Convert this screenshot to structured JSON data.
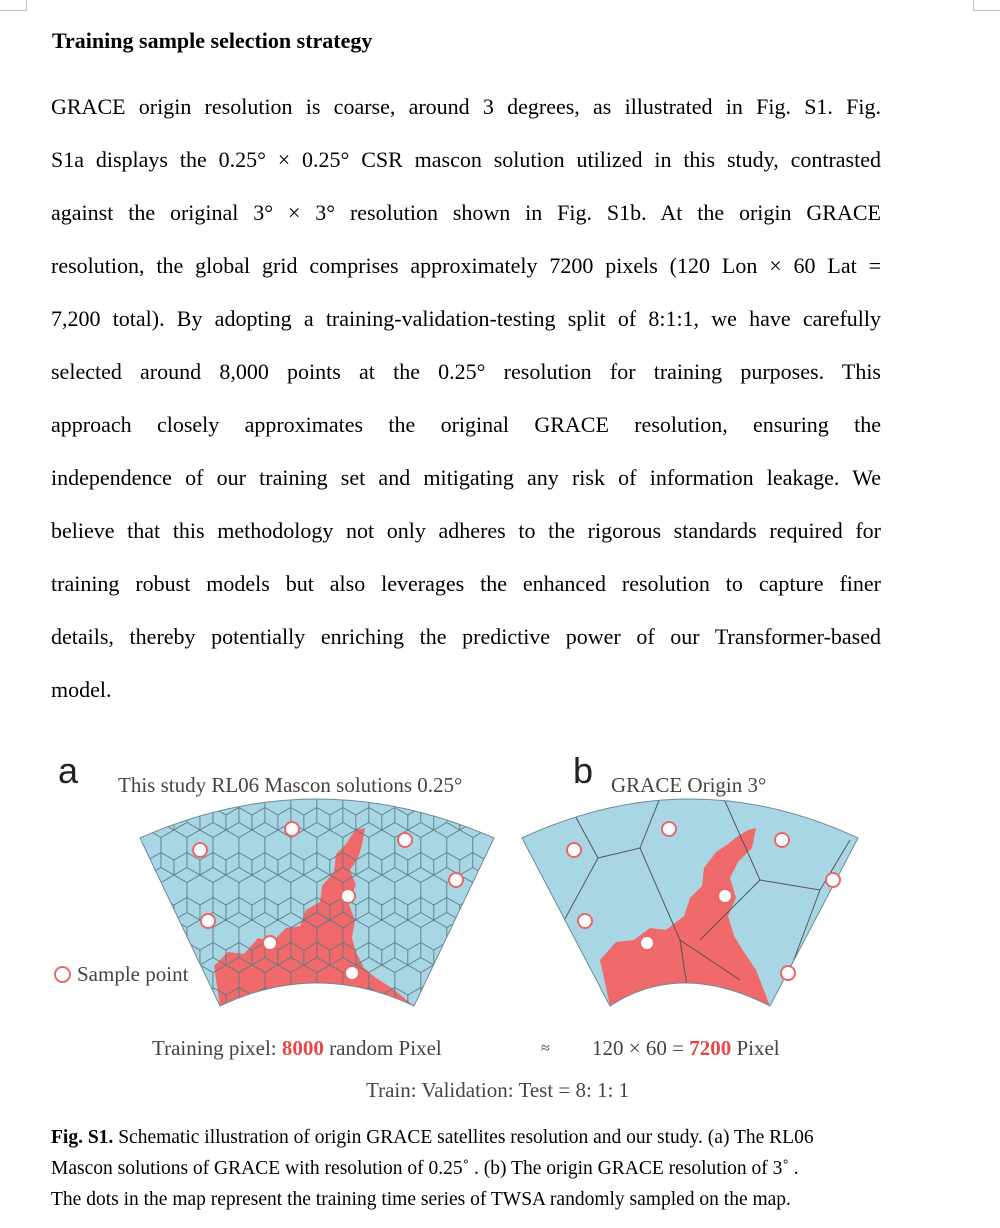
{
  "section": {
    "heading": "Training sample selection strategy"
  },
  "body_lines": [
    "GRACE origin resolution is coarse, around 3 degrees, as illustrated in Fig. S1. Fig.",
    "S1a displays the 0.25° × 0.25° CSR mascon solution utilized in this study, contrasted",
    "against the original 3° × 3° resolution shown in Fig. S1b. At the origin GRACE",
    "resolution, the global grid comprises approximately 7200 pixels (120 Lon × 60 Lat =",
    "7,200 total). By adopting a training-validation-testing split of 8:1:1, we have carefully",
    "selected around 8,000 points at the 0.25° resolution for training purposes. This",
    "approach closely approximates the original GRACE resolution, ensuring the",
    "independence of our training set and mitigating any risk of information leakage. We",
    "believe that this methodology not only adheres to the rigorous standards required for",
    "training robust models but also leverages the enhanced resolution to capture finer",
    "details, thereby potentially enriching the predictive power of our Transformer-based",
    "model."
  ],
  "figure": {
    "panel_a": {
      "letter": "a",
      "title": "This study RL06 Mascon solutions 0.25°"
    },
    "panel_b": {
      "letter": "b",
      "title": "GRACE Origin 3°"
    },
    "legend": {
      "label": "Sample point"
    },
    "training": {
      "prefix": "Training pixel: ",
      "value_a": "8000",
      "suffix_a": " random Pixel",
      "approx": "≈",
      "grid": "120 × 60 = ",
      "value_b": "7200",
      "suffix_b": " Pixel"
    },
    "split": "Train: Validation: Test = 8: 1: 1",
    "colors": {
      "ocean": "#a9d6e4",
      "land": "#f0696b",
      "dot_edge": "#e8686a",
      "accent": "#e8464b"
    }
  },
  "caption": {
    "label": "Fig. S1.",
    "line1": " Schematic illustration of origin GRACE satellites resolution and our study. (a) The RL06",
    "line2": "Mascon solutions of GRACE with resolution of 0.25˚ . (b) The origin GRACE resolution of 3˚ .",
    "line3": "The dots in the map represent the training time series of TWSA randomly sampled on the map."
  }
}
